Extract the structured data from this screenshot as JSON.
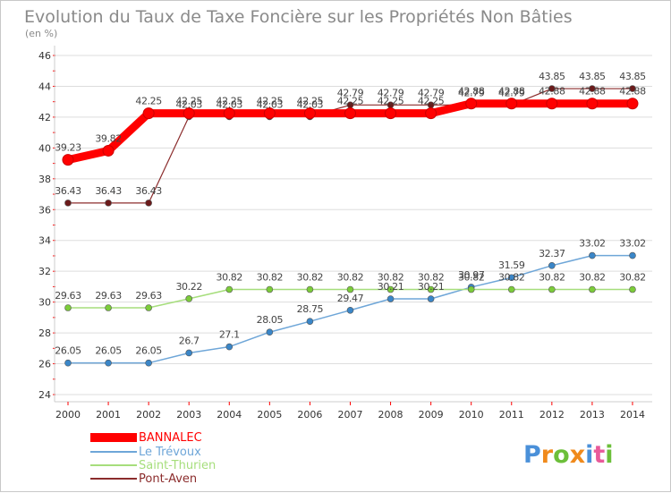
{
  "chart_data": {
    "type": "line",
    "title": "Evolution du Taux de Taxe Foncière sur les Propriétés Non Bâties",
    "subtitle": "(en %)",
    "xlabel": "",
    "ylabel": "",
    "x": [
      "2000",
      "2001",
      "2002",
      "2003",
      "2004",
      "2005",
      "2006",
      "2007",
      "2008",
      "2009",
      "2010",
      "2011",
      "2012",
      "2013",
      "2014"
    ],
    "ylim": [
      24,
      46
    ],
    "yticks": [
      24,
      26,
      28,
      30,
      32,
      34,
      36,
      38,
      40,
      42,
      44,
      46
    ],
    "grid": "horizontal",
    "legend_position": "bottom-left",
    "series": [
      {
        "name": "BANNALEC",
        "color": "#ff0000",
        "marker_color": "#ff0000",
        "values": [
          39.23,
          39.82,
          42.25,
          42.25,
          42.25,
          42.25,
          42.25,
          42.25,
          42.25,
          42.25,
          42.88,
          42.88,
          42.88,
          42.88,
          42.88
        ],
        "labels": [
          "39.23",
          "39.82",
          "42.25",
          "42.25",
          "42.25",
          "42.25",
          "42.25",
          "42.25",
          "42.25",
          "42.25",
          "42.88",
          "42.88",
          "42.88",
          "42.88",
          "42.88"
        ]
      },
      {
        "name": "Le Trévoux",
        "color": "#6ea6d8",
        "marker_color": "#3a86c8",
        "values": [
          26.05,
          26.05,
          26.05,
          26.7,
          27.1,
          28.05,
          28.75,
          29.47,
          30.21,
          30.21,
          30.97,
          31.59,
          32.37,
          33.02,
          33.02
        ],
        "labels": [
          "26.05",
          "26.05",
          "26.05",
          "26.7",
          "27.1",
          "28.05",
          "28.75",
          "29.47",
          "30.21",
          "30.21",
          "30.97",
          "31.59",
          "32.37",
          "33.02",
          "33.02"
        ]
      },
      {
        "name": "Saint-Thurien",
        "color": "#a6de7c",
        "marker_color": "#7ccc3a",
        "values": [
          29.63,
          29.63,
          29.63,
          30.22,
          30.82,
          30.82,
          30.82,
          30.82,
          30.82,
          30.82,
          30.82,
          30.82,
          30.82,
          30.82,
          30.82
        ],
        "labels": [
          "29.63",
          "29.63",
          "29.63",
          "30.22",
          "30.82",
          "30.82",
          "30.82",
          "30.82",
          "30.82",
          "30.82",
          "30.82",
          "30.82",
          "30.82",
          "30.82",
          "30.82"
        ]
      },
      {
        "name": "Pont-Aven",
        "color": "#8b2c2c",
        "marker_color": "#6b1a1a",
        "values": [
          36.43,
          36.43,
          36.43,
          42.03,
          42.03,
          42.03,
          42.03,
          42.79,
          42.79,
          42.79,
          42.79,
          42.79,
          43.85,
          43.85,
          43.85
        ],
        "labels": [
          "36.43",
          "36.43",
          "36.43",
          "42.03",
          "42.03",
          "42.03",
          "42.03",
          "42.79",
          "42.79",
          "42.79",
          "42.79",
          "42.79",
          "43.85",
          "43.85",
          "43.85"
        ]
      }
    ]
  },
  "brand": {
    "letters": [
      "P",
      "r",
      "o",
      "x",
      "i",
      "t",
      "i"
    ],
    "colors": [
      "#4a90d9",
      "#f08a1c",
      "#6cbf3a",
      "#f08a1c",
      "#4a90d9",
      "#e85a9a",
      "#6cbf3a"
    ]
  },
  "colors": {
    "axis": "#cccccc",
    "grid": "#dddddd",
    "tick_marks": "#ff0000"
  }
}
